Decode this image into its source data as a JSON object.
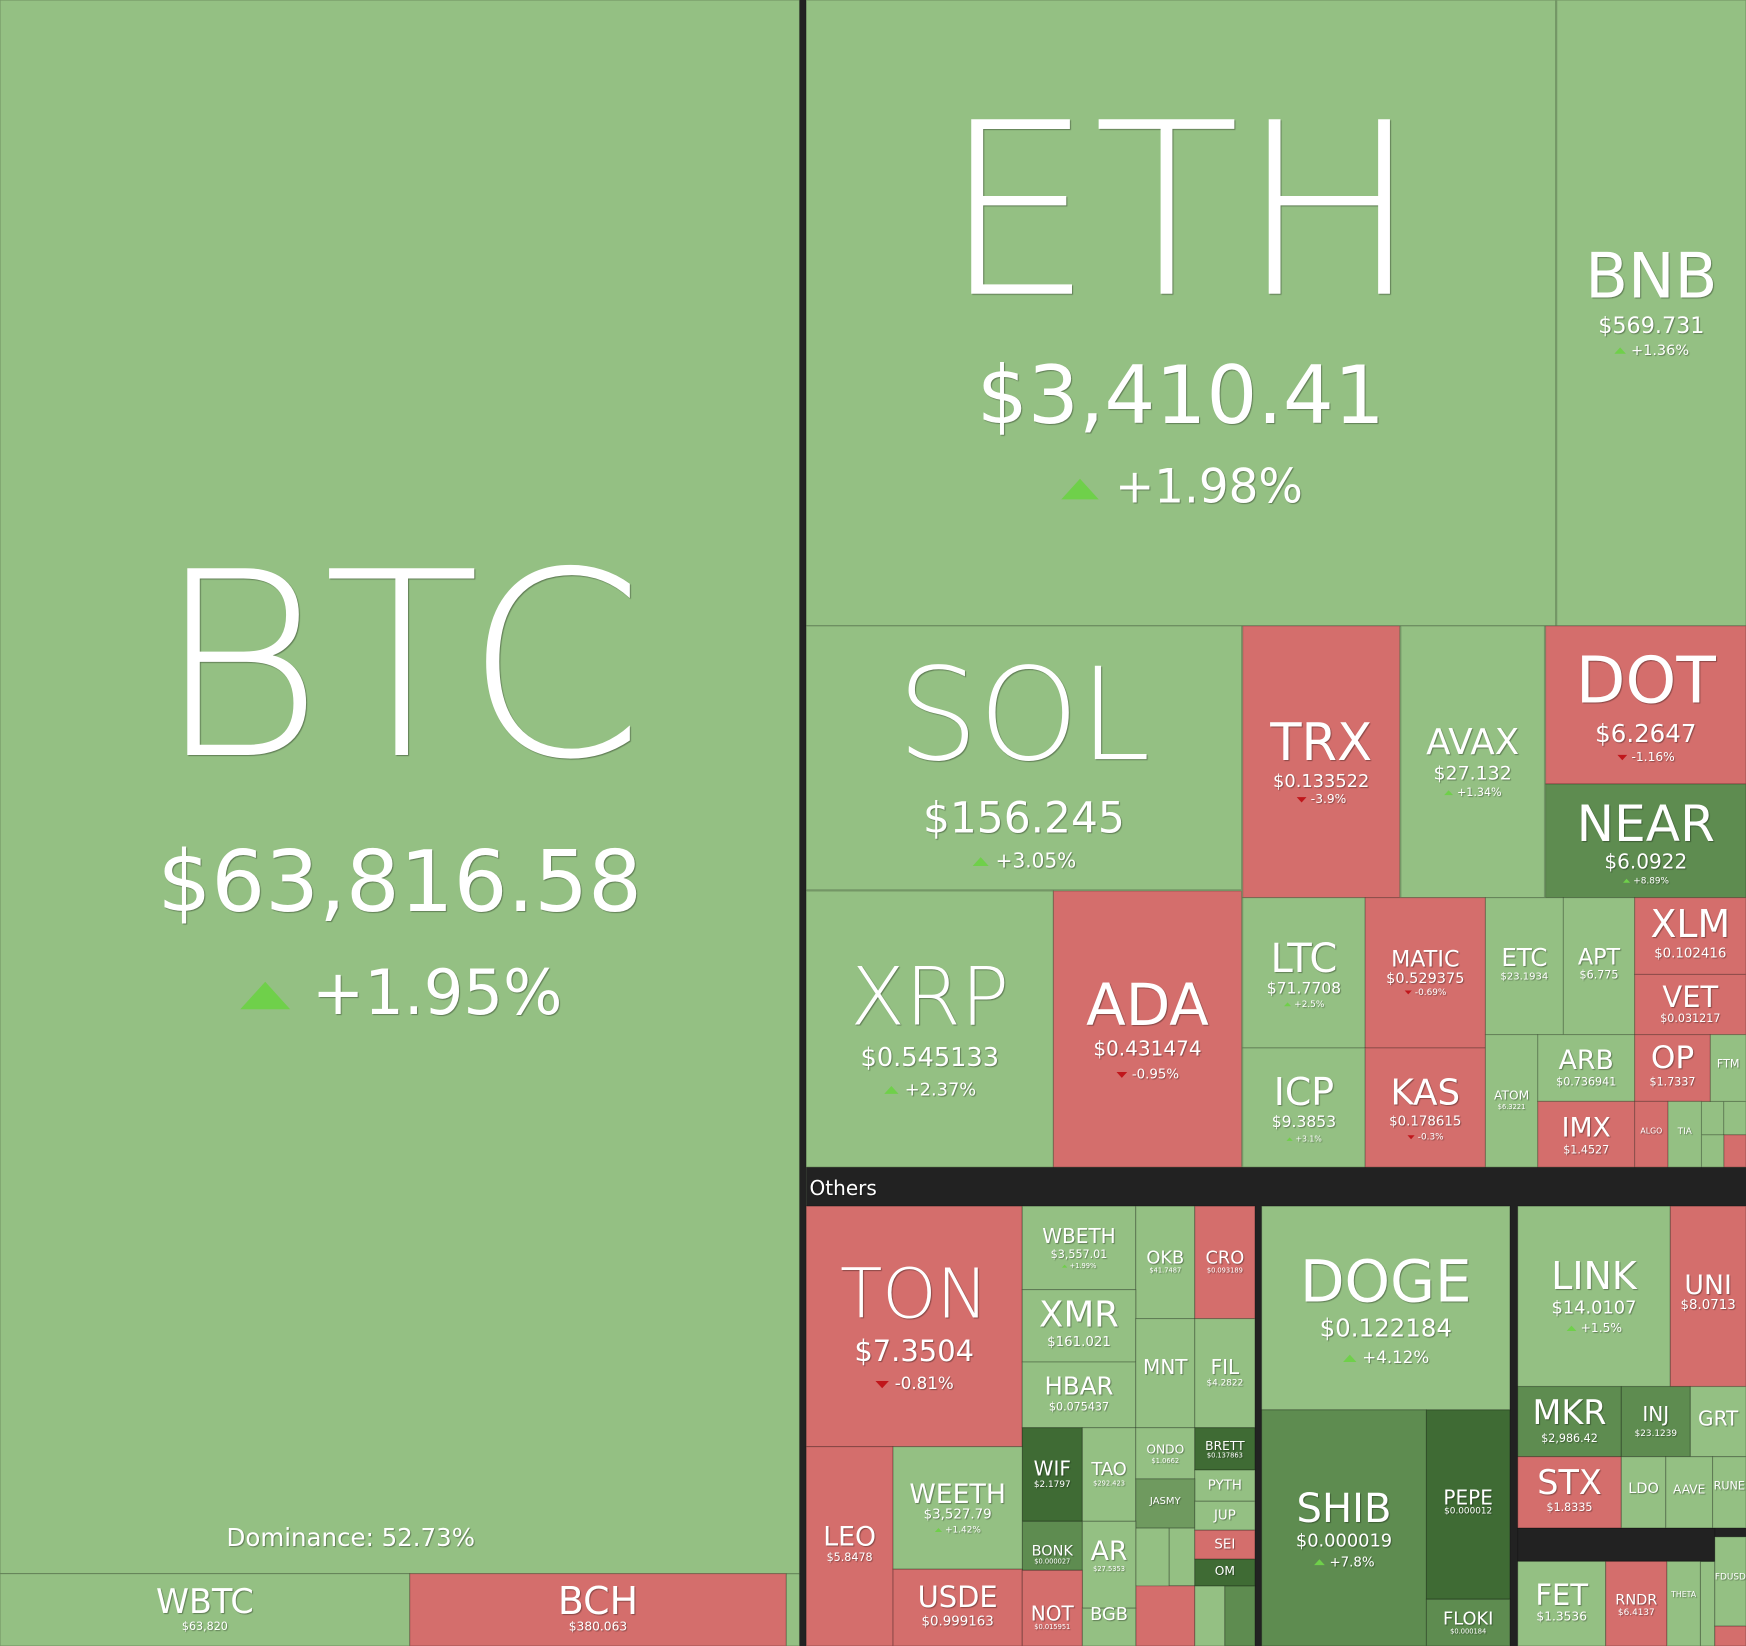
{
  "dominance": "Dominance: 52.73%",
  "others_label": "Others",
  "tiles": [
    {
      "symbol": "BTC",
      "price": "$63,816.58",
      "change": "+1.95%"
    },
    {
      "symbol": "ETH",
      "price": "$3,410.41",
      "change": "+1.98%"
    },
    {
      "symbol": "BNB",
      "price": "$569.731",
      "change": "+1.36%"
    },
    {
      "symbol": "SOL",
      "price": "$156.245",
      "change": "+3.05%"
    },
    {
      "symbol": "TRX",
      "price": "$0.133522",
      "change": "-3.9%"
    },
    {
      "symbol": "AVAX",
      "price": "$27.132",
      "change": "+1.34%"
    },
    {
      "symbol": "DOT",
      "price": "$6.2647",
      "change": "-1.16%"
    },
    {
      "symbol": "NEAR",
      "price": "$6.0922",
      "change": "+8.89%"
    },
    {
      "symbol": "XRP",
      "price": "$0.545133",
      "change": "+2.37%"
    },
    {
      "symbol": "ADA",
      "price": "$0.431474",
      "change": "-0.95%"
    },
    {
      "symbol": "LTC",
      "price": "$71.7708",
      "change": "+2.5%"
    },
    {
      "symbol": "MATIC",
      "price": "$0.529375",
      "change": "-0.69%"
    },
    {
      "symbol": "ETC",
      "price": "$23.1934"
    },
    {
      "symbol": "APT",
      "price": "$6.775"
    },
    {
      "symbol": "XLM",
      "price": "$0.102416"
    },
    {
      "symbol": "VET",
      "price": "$0.031217"
    },
    {
      "symbol": "ICP",
      "price": "$9.3853",
      "change": "+3.1%"
    },
    {
      "symbol": "KAS",
      "price": "$0.178615",
      "change": "-0.3%"
    },
    {
      "symbol": "ATOM",
      "price": "$6.3221"
    },
    {
      "symbol": "ARB",
      "price": "$0.736941"
    },
    {
      "symbol": "OP",
      "price": "$1.7337"
    },
    {
      "symbol": "FTM"
    },
    {
      "symbol": "IMX",
      "price": "$1.4527"
    },
    {
      "symbol": "ALGO"
    },
    {
      "symbol": "TIA"
    },
    {
      "symbol": "WBTC",
      "price": "$63,820"
    },
    {
      "symbol": "BCH",
      "price": "$380.063"
    },
    {
      "symbol": "TON",
      "price": "$7.3504",
      "change": "-0.81%"
    },
    {
      "symbol": "WBETH",
      "price": "$3,557.01",
      "change": "+1.99%"
    },
    {
      "symbol": "OKB",
      "price": "$41.7487"
    },
    {
      "symbol": "CRO",
      "price": "$0.093189"
    },
    {
      "symbol": "XMR",
      "price": "$161.021"
    },
    {
      "symbol": "HBAR",
      "price": "$0.075437"
    },
    {
      "symbol": "MNT"
    },
    {
      "symbol": "FIL",
      "price": "$4.2822"
    },
    {
      "symbol": "WIF",
      "price": "$2.1797"
    },
    {
      "symbol": "TAO",
      "price": "$292.423"
    },
    {
      "symbol": "ONDO",
      "price": "$1.0662"
    },
    {
      "symbol": "BRETT",
      "price": "$0.137863"
    },
    {
      "symbol": "PYTH"
    },
    {
      "symbol": "JASMY"
    },
    {
      "symbol": "JUP"
    },
    {
      "symbol": "SEI"
    },
    {
      "symbol": "OM"
    },
    {
      "symbol": "BONK",
      "price": "$0.000027"
    },
    {
      "symbol": "AR",
      "price": "$27.5353"
    },
    {
      "symbol": "LEO",
      "price": "$5.8478"
    },
    {
      "symbol": "WEETH",
      "price": "$3,527.79",
      "change": "+1.42%"
    },
    {
      "symbol": "USDE",
      "price": "$0.999163"
    },
    {
      "symbol": "NOT",
      "price": "$0.015951"
    },
    {
      "symbol": "BGB"
    },
    {
      "symbol": "DOGE",
      "price": "$0.122184",
      "change": "+4.12%"
    },
    {
      "symbol": "SHIB",
      "price": "$0.000019",
      "change": "+7.8%"
    },
    {
      "symbol": "PEPE",
      "price": "$0.000012"
    },
    {
      "symbol": "FLOKI",
      "price": "$0.000184"
    },
    {
      "symbol": "LINK",
      "price": "$14.0107",
      "change": "+1.5%"
    },
    {
      "symbol": "UNI",
      "price": "$8.0713"
    },
    {
      "symbol": "MKR",
      "price": "$2,986.42"
    },
    {
      "symbol": "INJ",
      "price": "$23.1239"
    },
    {
      "symbol": "GRT"
    },
    {
      "symbol": "STX",
      "price": "$1.8335"
    },
    {
      "symbol": "LDO"
    },
    {
      "symbol": "AAVE"
    },
    {
      "symbol": "RUNE"
    },
    {
      "symbol": "FET",
      "price": "$1.3536"
    },
    {
      "symbol": "RNDR",
      "price": "$6.4137"
    },
    {
      "symbol": "THETA"
    },
    {
      "symbol": "FDUSD"
    }
  ]
}
